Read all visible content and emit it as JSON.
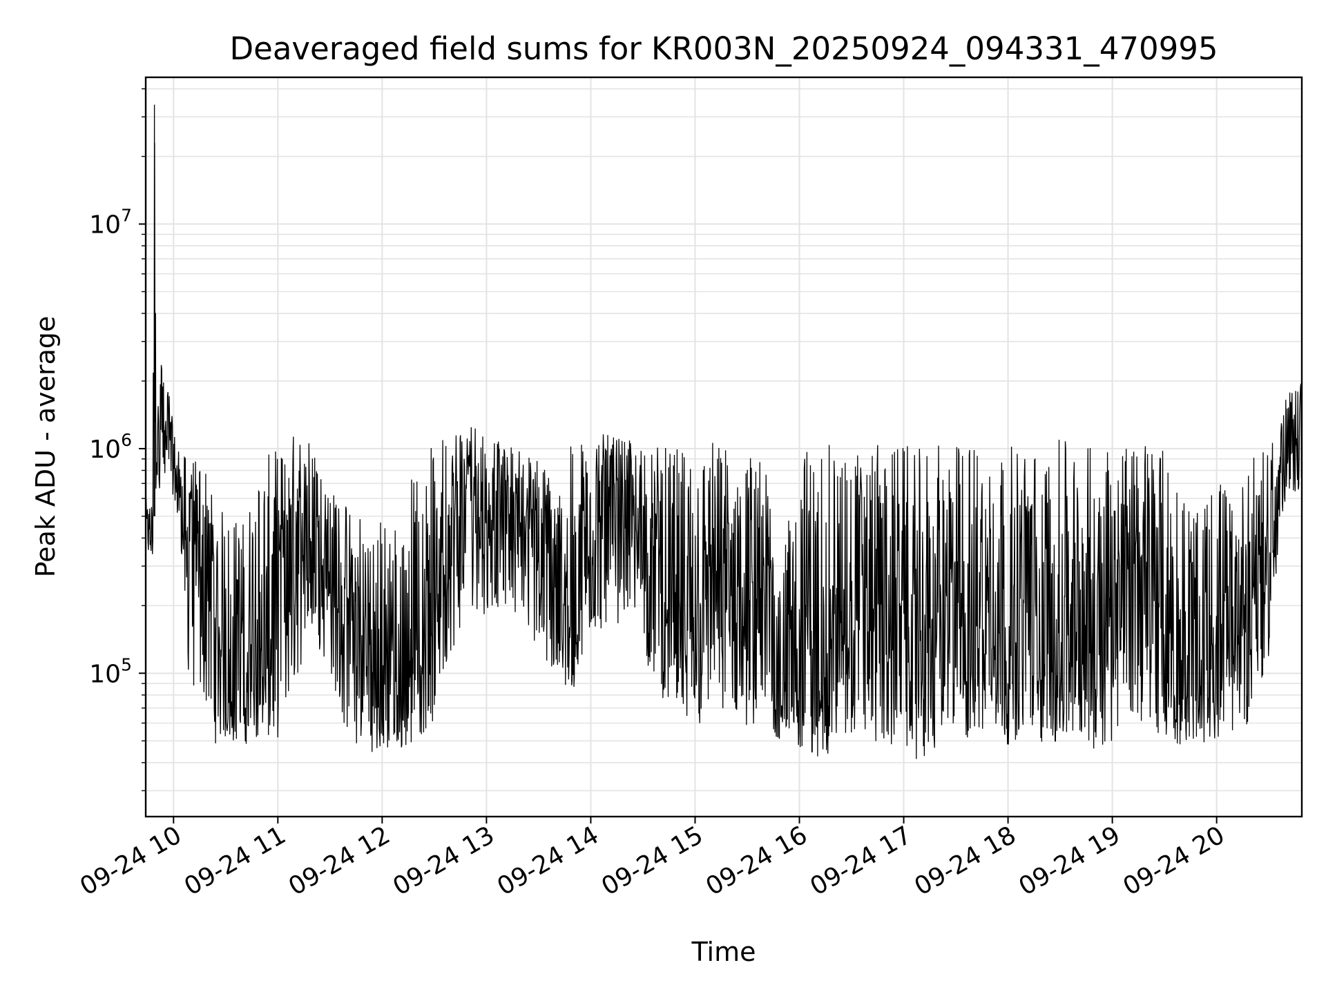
{
  "chart_data": {
    "type": "line",
    "title": "Deaveraged field sums for KR003N_20250924_094331_470995",
    "xlabel": "Time",
    "ylabel": "Peak ADU - average",
    "y_scale": "log",
    "ylim": [
      23000,
      45000000
    ],
    "xlim": [
      "2025-09-24 09:44",
      "2025-09-24 20:49"
    ],
    "grid": true,
    "line_color": "#000000",
    "x_ticks": [
      {
        "value": "2025-09-24 10:00",
        "label": "09-24 10"
      },
      {
        "value": "2025-09-24 11:00",
        "label": "09-24 11"
      },
      {
        "value": "2025-09-24 12:00",
        "label": "09-24 12"
      },
      {
        "value": "2025-09-24 13:00",
        "label": "09-24 13"
      },
      {
        "value": "2025-09-24 14:00",
        "label": "09-24 14"
      },
      {
        "value": "2025-09-24 15:00",
        "label": "09-24 15"
      },
      {
        "value": "2025-09-24 16:00",
        "label": "09-24 16"
      },
      {
        "value": "2025-09-24 17:00",
        "label": "09-24 17"
      },
      {
        "value": "2025-09-24 18:00",
        "label": "09-24 18"
      },
      {
        "value": "2025-09-24 19:00",
        "label": "09-24 19"
      },
      {
        "value": "2025-09-24 20:00",
        "label": "09-24 20"
      }
    ],
    "y_ticks": [
      {
        "value": 100000,
        "base": "10",
        "exp": "5"
      },
      {
        "value": 1000000,
        "base": "10",
        "exp": "6"
      },
      {
        "value": 10000000,
        "base": "10",
        "exp": "7"
      }
    ],
    "series": [
      {
        "x": [
          "2025-09-24 09:44",
          "2025-09-24 09:48",
          "2025-09-24 09:49",
          "2025-09-24 09:50",
          "2025-09-24 09:53",
          "2025-09-24 09:55",
          "2025-09-24 09:57",
          "2025-09-24 10:00",
          "2025-09-24 10:05",
          "2025-09-24 10:08",
          "2025-09-24 10:12",
          "2025-09-24 10:20",
          "2025-09-24 10:25",
          "2025-09-24 10:30",
          "2025-09-24 10:40",
          "2025-09-24 10:50",
          "2025-09-24 11:00",
          "2025-09-24 11:10",
          "2025-09-24 11:20",
          "2025-09-24 11:30",
          "2025-09-24 11:40",
          "2025-09-24 11:50",
          "2025-09-24 12:00",
          "2025-09-24 12:10",
          "2025-09-24 12:20",
          "2025-09-24 12:30",
          "2025-09-24 12:40",
          "2025-09-24 12:50",
          "2025-09-24 13:00",
          "2025-09-24 13:10",
          "2025-09-24 13:20",
          "2025-09-24 13:30",
          "2025-09-24 13:40",
          "2025-09-24 13:50",
          "2025-09-24 14:00",
          "2025-09-24 14:10",
          "2025-09-24 14:20",
          "2025-09-24 14:30",
          "2025-09-24 14:40",
          "2025-09-24 14:50",
          "2025-09-24 15:00",
          "2025-09-24 15:10",
          "2025-09-24 15:20",
          "2025-09-24 15:30",
          "2025-09-24 15:40",
          "2025-09-24 15:50",
          "2025-09-24 16:00",
          "2025-09-24 16:10",
          "2025-09-24 16:20",
          "2025-09-24 16:30",
          "2025-09-24 16:40",
          "2025-09-24 16:50",
          "2025-09-24 17:00",
          "2025-09-24 17:10",
          "2025-09-24 17:20",
          "2025-09-24 17:30",
          "2025-09-24 17:40",
          "2025-09-24 17:50",
          "2025-09-24 18:00",
          "2025-09-24 18:10",
          "2025-09-24 18:20",
          "2025-09-24 18:30",
          "2025-09-24 18:40",
          "2025-09-24 18:50",
          "2025-09-24 19:00",
          "2025-09-24 19:10",
          "2025-09-24 19:20",
          "2025-09-24 19:30",
          "2025-09-24 19:40",
          "2025-09-24 19:50",
          "2025-09-24 20:00",
          "2025-09-24 20:10",
          "2025-09-24 20:20",
          "2025-09-24 20:30",
          "2025-09-24 20:40",
          "2025-09-24 20:49"
        ],
        "y": [
          550000,
          420000,
          34000000,
          800000,
          2300000,
          900000,
          1500000,
          800000,
          600000,
          550000,
          450000,
          250000,
          130000,
          90000,
          75000,
          80000,
          220000,
          380000,
          450000,
          400000,
          150000,
          85000,
          70000,
          65000,
          120000,
          200000,
          500000,
          700000,
          650000,
          700000,
          600000,
          450000,
          150000,
          110000,
          550000,
          600000,
          650000,
          550000,
          300000,
          110000,
          90000,
          220000,
          180000,
          170000,
          150000,
          80000,
          65000,
          60000,
          200000,
          150000,
          180000,
          160000,
          150000,
          90000,
          180000,
          120000,
          100000,
          160000,
          90000,
          170000,
          110000,
          140000,
          180000,
          120000,
          300000,
          350000,
          250000,
          80000,
          85000,
          90000,
          110000,
          120000,
          130000,
          450000,
          1000000,
          1100000
        ],
        "min_envelope": [
          320000,
          300000,
          500000,
          600000,
          700000,
          600000,
          800000,
          600000,
          300000,
          100000,
          80000,
          70000,
          45000,
          50000,
          48000,
          50000,
          50000,
          90000,
          150000,
          100000,
          50000,
          45000,
          44000,
          45000,
          50000,
          60000,
          120000,
          200000,
          180000,
          200000,
          180000,
          120000,
          90000,
          80000,
          150000,
          150000,
          180000,
          120000,
          80000,
          60000,
          55000,
          60000,
          60000,
          58000,
          55000,
          50000,
          45000,
          40000,
          45000,
          45000,
          48000,
          46000,
          45000,
          40000,
          45000,
          48000,
          50000,
          50000,
          48000,
          50000,
          48000,
          48000,
          47000,
          45000,
          50000,
          55000,
          60000,
          50000,
          48000,
          48000,
          50000,
          55000,
          60000,
          120000,
          600000,
          650000
        ],
        "max_envelope": [
          600000,
          600000,
          34000000,
          1200000,
          2400000,
          1800000,
          2000000,
          1200000,
          950000,
          900000,
          900000,
          850000,
          600000,
          500000,
          500000,
          900000,
          1000000,
          1200000,
          1100000,
          700000,
          600000,
          550000,
          500000,
          550000,
          900000,
          1100000,
          1200000,
          1350000,
          1200000,
          1050000,
          1000000,
          950000,
          700000,
          1100000,
          1200000,
          1150000,
          1100000,
          1050000,
          1050000,
          1000000,
          1100000,
          1100000,
          1100000,
          1000000,
          900000,
          300000,
          1050000,
          1050000,
          1050000,
          1050000,
          1050000,
          1050000,
          1050000,
          1000000,
          1050000,
          1050000,
          1150000,
          1100000,
          1050000,
          1050000,
          1050000,
          1100000,
          1050000,
          1050000,
          1050000,
          1100000,
          1100000,
          1000000,
          700000,
          500000,
          800000,
          600000,
          900000,
          1000000,
          1700000,
          2100000
        ]
      }
    ]
  }
}
